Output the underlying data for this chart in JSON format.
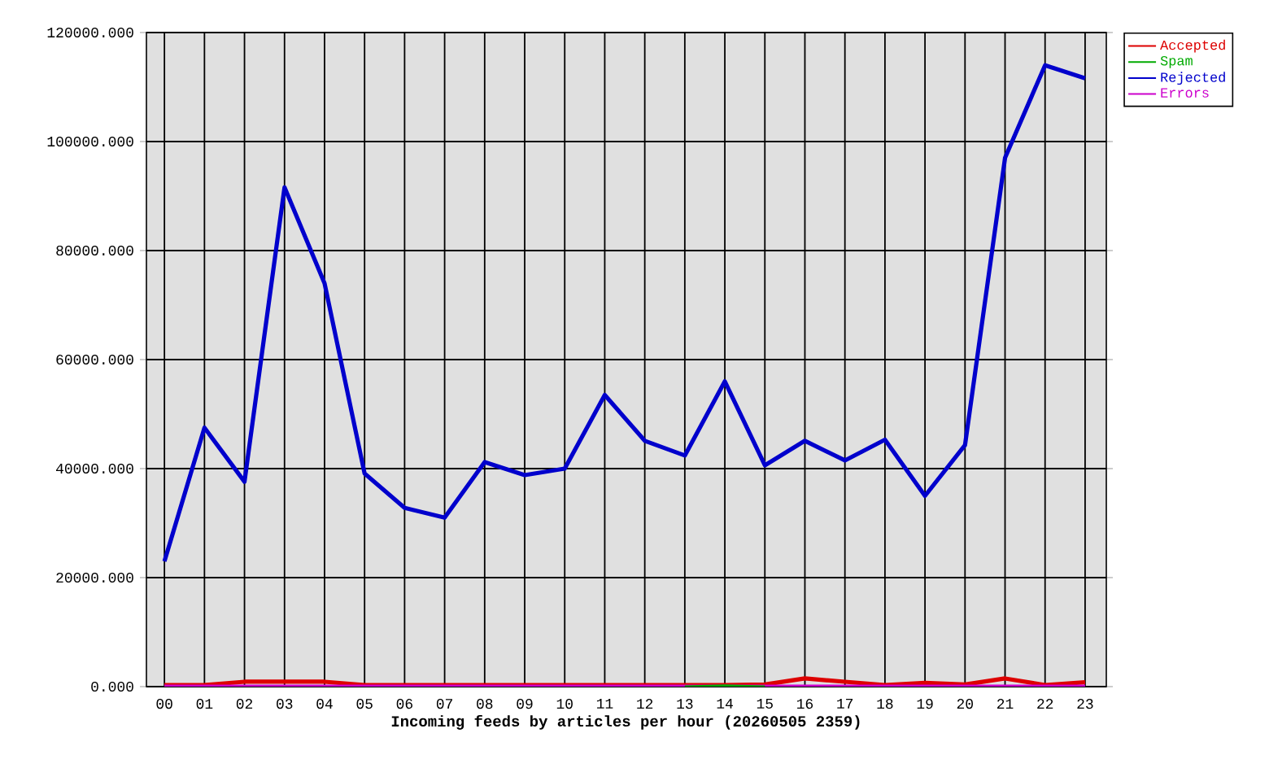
{
  "chart_data": {
    "type": "line",
    "xlabel": "Incoming feeds by articles per hour (20260505 2359)",
    "categories": [
      "00",
      "01",
      "02",
      "03",
      "04",
      "05",
      "06",
      "07",
      "08",
      "09",
      "10",
      "11",
      "12",
      "13",
      "14",
      "15",
      "16",
      "17",
      "18",
      "19",
      "20",
      "21",
      "22",
      "23"
    ],
    "series": [
      {
        "name": "Accepted",
        "color": "#dd0000",
        "values": [
          300,
          300,
          900,
          900,
          900,
          300,
          300,
          300,
          300,
          300,
          300,
          300,
          300,
          300,
          300,
          400,
          1500,
          900,
          300,
          700,
          400,
          1500,
          300,
          800
        ]
      },
      {
        "name": "Spam",
        "color": "#00aa00",
        "values": [
          null,
          null,
          null,
          null,
          null,
          null,
          null,
          null,
          null,
          null,
          null,
          null,
          null,
          0,
          200,
          0,
          null,
          null,
          null,
          null,
          null,
          null,
          null,
          null
        ]
      },
      {
        "name": "Rejected",
        "color": "#0000cc",
        "values": [
          23000,
          47500,
          37600,
          91600,
          74000,
          39100,
          32800,
          31000,
          41200,
          38800,
          40000,
          53500,
          45100,
          42400,
          56000,
          40600,
          45100,
          41500,
          45300,
          35000,
          44300,
          97000,
          114000,
          111600
        ]
      },
      {
        "name": "Errors",
        "color": "#cc00cc",
        "values": [
          0,
          0,
          0,
          0,
          0,
          0,
          0,
          0,
          0,
          0,
          0,
          0,
          0,
          0,
          0,
          0,
          0,
          0,
          0,
          0,
          0,
          0,
          0,
          0
        ]
      }
    ],
    "ylim": [
      0,
      120000
    ],
    "yticks": [
      {
        "value": 0,
        "label": "0.000"
      },
      {
        "value": 20000,
        "label": "20000.000"
      },
      {
        "value": 40000,
        "label": "40000.000"
      },
      {
        "value": 60000,
        "label": "60000.000"
      },
      {
        "value": 80000,
        "label": "80000.000"
      },
      {
        "value": 100000,
        "label": "100000.000"
      },
      {
        "value": 120000,
        "label": "120000.000"
      }
    ],
    "grid": true,
    "legend": "top right"
  }
}
